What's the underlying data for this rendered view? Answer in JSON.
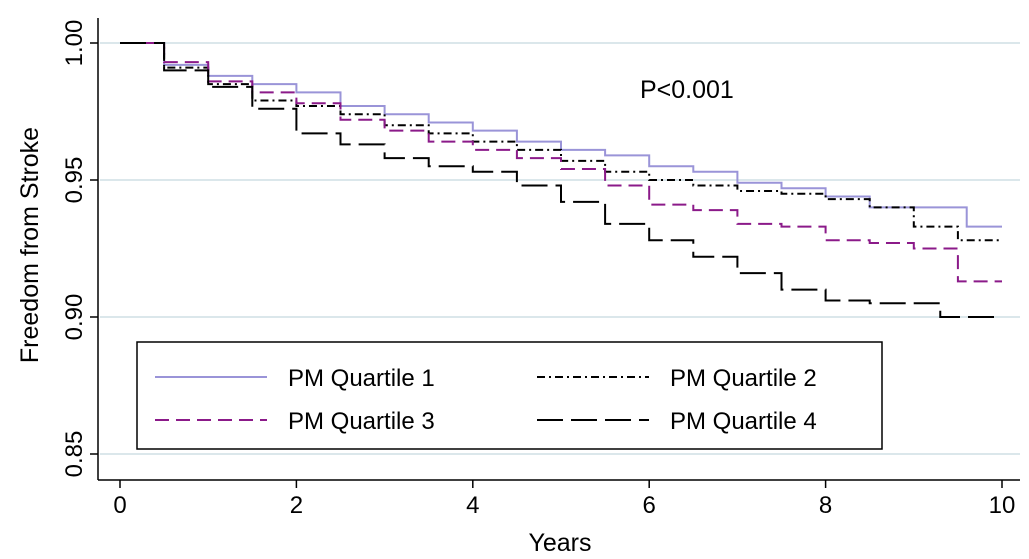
{
  "chart_data": {
    "type": "line",
    "xlabel": "Years",
    "ylabel": "Freedom from Stroke",
    "xlim": [
      0,
      10
    ],
    "ylim": [
      0.85,
      1.0
    ],
    "x_ticks": [
      0,
      2,
      4,
      6,
      8,
      10
    ],
    "y_ticks": [
      0.85,
      0.9,
      0.95,
      1.0
    ],
    "x_tick_labels": [
      "0",
      "2",
      "4",
      "6",
      "8",
      "10"
    ],
    "y_tick_labels": [
      "0.85",
      "0.90",
      "0.95",
      "1.00"
    ],
    "grid": "horizontal",
    "annotation": "P<0.001",
    "legend_position": "bottom-left",
    "series": [
      {
        "name": "PM Quartile 1",
        "color": "#9a94d8",
        "style": "solid",
        "x": [
          0,
          0.5,
          1,
          1.5,
          2,
          2.5,
          3,
          3.5,
          4,
          4.5,
          5,
          5.5,
          6,
          6.5,
          7,
          7.5,
          8,
          8.5,
          9,
          9.6,
          10
        ],
        "y": [
          1.0,
          0.992,
          0.988,
          0.985,
          0.982,
          0.977,
          0.974,
          0.971,
          0.968,
          0.964,
          0.961,
          0.959,
          0.955,
          0.953,
          0.949,
          0.947,
          0.944,
          0.94,
          0.94,
          0.933,
          0.933
        ]
      },
      {
        "name": "PM Quartile 2",
        "color": "#000000",
        "style": "dash-dot",
        "x": [
          0,
          0.5,
          1,
          1.5,
          2,
          2.5,
          3,
          3.5,
          4,
          4.5,
          5,
          5.5,
          6,
          6.5,
          7,
          7.5,
          8,
          8.5,
          9,
          9.5,
          10
        ],
        "y": [
          1.0,
          0.991,
          0.985,
          0.979,
          0.977,
          0.974,
          0.97,
          0.967,
          0.964,
          0.961,
          0.957,
          0.953,
          0.95,
          0.948,
          0.946,
          0.945,
          0.943,
          0.94,
          0.933,
          0.928,
          0.928
        ]
      },
      {
        "name": "PM Quartile 3",
        "color": "#8b1a89",
        "style": "dashed",
        "x": [
          0,
          0.5,
          1,
          1.5,
          2,
          2.5,
          3,
          3.5,
          4,
          4.5,
          5,
          5.5,
          6,
          6.5,
          7,
          7.5,
          8,
          8.5,
          9,
          9.5,
          10
        ],
        "y": [
          1.0,
          0.993,
          0.986,
          0.982,
          0.978,
          0.972,
          0.968,
          0.964,
          0.961,
          0.958,
          0.954,
          0.948,
          0.941,
          0.939,
          0.934,
          0.933,
          0.928,
          0.927,
          0.925,
          0.913,
          0.913
        ]
      },
      {
        "name": "PM Quartile 4",
        "color": "#000000",
        "style": "long-dash",
        "x": [
          0,
          0.5,
          1,
          1.5,
          2,
          2.5,
          3,
          3.5,
          4,
          4.5,
          5,
          5.5,
          6,
          6.5,
          7,
          7.5,
          8,
          8.5,
          9,
          9.3,
          10
        ],
        "y": [
          1.0,
          0.99,
          0.984,
          0.976,
          0.967,
          0.963,
          0.958,
          0.955,
          0.953,
          0.948,
          0.942,
          0.934,
          0.928,
          0.922,
          0.916,
          0.91,
          0.906,
          0.905,
          0.905,
          0.9,
          0.9
        ]
      }
    ]
  }
}
